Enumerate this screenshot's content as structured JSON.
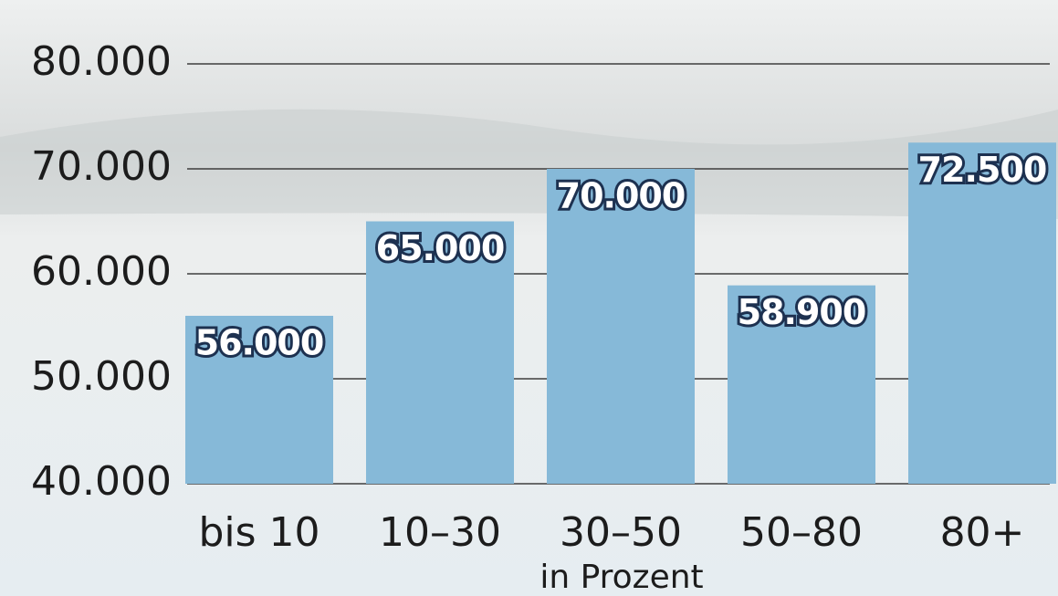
{
  "chart_data": {
    "type": "bar",
    "x_label": "in Prozent",
    "categories": [
      "bis 10",
      "10–30",
      "30–50",
      "50–80",
      "80+"
    ],
    "values": [
      56000,
      65000,
      70000,
      58900,
      72500
    ],
    "value_labels": [
      "56.000",
      "65.000",
      "70.000",
      "58.900",
      "72.500"
    ],
    "color": "#86b9d8",
    "ylim": [
      40000,
      80000
    ],
    "yticks": [
      {
        "value": 40000,
        "label": "40.000"
      },
      {
        "value": 50000,
        "label": "50.000"
      },
      {
        "value": 60000,
        "label": "60.000"
      },
      {
        "value": 70000,
        "label": "70.000"
      },
      {
        "value": 80000,
        "label": "80.000"
      }
    ],
    "grid": true
  }
}
